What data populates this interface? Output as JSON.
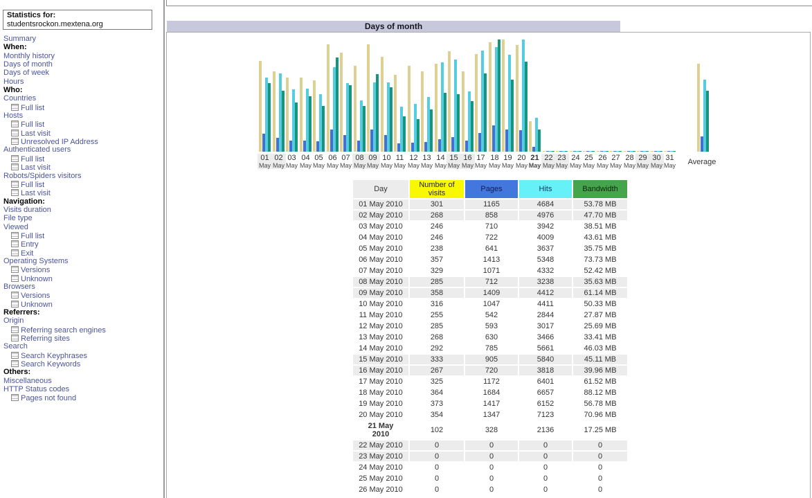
{
  "sidebar": {
    "stats_for_label": "Statistics for:",
    "site": "studentsrockon.mextena.org",
    "items": [
      {
        "type": "link",
        "label": "Summary"
      },
      {
        "type": "header",
        "label": "When:"
      },
      {
        "type": "link",
        "label": "Monthly history"
      },
      {
        "type": "link",
        "label": "Days of month"
      },
      {
        "type": "link",
        "label": "Days of week"
      },
      {
        "type": "link",
        "label": "Hours"
      },
      {
        "type": "header",
        "label": "Who:"
      },
      {
        "type": "link",
        "label": "Countries"
      },
      {
        "type": "sub",
        "label": "Full list"
      },
      {
        "type": "link",
        "label": "Hosts"
      },
      {
        "type": "sub",
        "label": "Full list"
      },
      {
        "type": "sub",
        "label": "Last visit"
      },
      {
        "type": "sub",
        "label": "Unresolved IP Address"
      },
      {
        "type": "link",
        "label": "Authenticated users"
      },
      {
        "type": "sub",
        "label": "Full list"
      },
      {
        "type": "sub",
        "label": "Last visit"
      },
      {
        "type": "link",
        "label": "Robots/Spiders visitors"
      },
      {
        "type": "sub",
        "label": "Full list"
      },
      {
        "type": "sub",
        "label": "Last visit"
      },
      {
        "type": "header",
        "label": "Navigation:"
      },
      {
        "type": "link",
        "label": "Visits duration"
      },
      {
        "type": "link",
        "label": "File type"
      },
      {
        "type": "link",
        "label": "Viewed"
      },
      {
        "type": "sub",
        "label": "Full list"
      },
      {
        "type": "sub",
        "label": "Entry"
      },
      {
        "type": "sub",
        "label": "Exit"
      },
      {
        "type": "link",
        "label": "Operating Systems"
      },
      {
        "type": "sub",
        "label": "Versions"
      },
      {
        "type": "sub",
        "label": "Unknown"
      },
      {
        "type": "link",
        "label": "Browsers"
      },
      {
        "type": "sub",
        "label": "Versions"
      },
      {
        "type": "sub",
        "label": "Unknown"
      },
      {
        "type": "header",
        "label": "Referrers:"
      },
      {
        "type": "link",
        "label": "Origin"
      },
      {
        "type": "sub",
        "label": "Referring search engines"
      },
      {
        "type": "sub",
        "label": "Referring sites"
      },
      {
        "type": "link",
        "label": "Search"
      },
      {
        "type": "sub",
        "label": "Search Keyphrases"
      },
      {
        "type": "sub",
        "label": "Search Keywords"
      },
      {
        "type": "header",
        "label": "Others:"
      },
      {
        "type": "link",
        "label": "Miscellaneous"
      },
      {
        "type": "link",
        "label": "HTTP Status codes"
      },
      {
        "type": "sub",
        "label": "Pages not found"
      }
    ]
  },
  "main": {
    "section_title": "Days of month",
    "average_label": "Average"
  },
  "colors": {
    "title_bar_bg": "#C8C8DC",
    "shaded_row": "#ECECEC",
    "link": "#4C549C",
    "visits_bar": "#DCD092",
    "pages_bar": "#4470CF",
    "hits_bar": "#55CCDF",
    "bandwidth_bar": "#16947E",
    "visits_header": "#F8F800",
    "pages_header": "#4477DD",
    "hits_header": "#66F0F8",
    "bandwidth_header": "#46A44C"
  },
  "chart_data": {
    "type": "bar",
    "title": "Days of month",
    "month_label": "May",
    "day_numbers": [
      "01",
      "02",
      "03",
      "04",
      "05",
      "06",
      "07",
      "08",
      "09",
      "10",
      "11",
      "12",
      "13",
      "14",
      "15",
      "16",
      "17",
      "18",
      "19",
      "20",
      "21",
      "22",
      "23",
      "24",
      "25",
      "26",
      "27",
      "28",
      "29",
      "30",
      "31"
    ],
    "weekend_days": [
      1,
      2,
      8,
      9,
      15,
      16,
      22,
      23,
      29,
      30
    ],
    "current_day": 21,
    "grid": false,
    "scaling_note": "AWStats style: visits scaled to max visits, pages and hits scaled to max hits, bandwidth scaled to max bandwidth; zero days drawn as 1px dashes",
    "series": [
      {
        "key": "visits",
        "name": "Number of visits",
        "scale": "visits",
        "color": "#DCD092",
        "values": [
          301,
          268,
          246,
          246,
          238,
          357,
          329,
          285,
          358,
          316,
          255,
          285,
          268,
          292,
          333,
          267,
          325,
          364,
          373,
          354,
          102,
          0,
          0,
          0,
          0,
          0,
          0,
          0,
          0,
          0,
          0
        ]
      },
      {
        "key": "pages",
        "name": "Pages",
        "scale": "hits",
        "color": "#4470CF",
        "values": [
          1165,
          858,
          710,
          722,
          641,
          1413,
          1071,
          712,
          1409,
          1047,
          542,
          593,
          630,
          785,
          905,
          720,
          1172,
          1684,
          1417,
          1347,
          328,
          0,
          0,
          0,
          0,
          0,
          0,
          0,
          0,
          0,
          0
        ]
      },
      {
        "key": "hits",
        "name": "Hits",
        "scale": "hits",
        "color": "#55CCDF",
        "values": [
          4684,
          4976,
          3942,
          4009,
          3637,
          5348,
          4332,
          3238,
          4412,
          4411,
          2844,
          3017,
          3466,
          5661,
          5840,
          3818,
          6401,
          6657,
          6152,
          7123,
          2136,
          0,
          0,
          0,
          0,
          0,
          0,
          0,
          0,
          0,
          0
        ]
      },
      {
        "key": "bandwidth",
        "name": "Bandwidth (MB)",
        "scale": "bandwidth",
        "color": "#16947E",
        "values": [
          53.78,
          47.7,
          38.51,
          43.61,
          35.75,
          73.73,
          52.42,
          35.63,
          61.14,
          50.33,
          27.87,
          25.69,
          33.41,
          46.03,
          45.11,
          39.96,
          61.52,
          88.12,
          56.78,
          70.96,
          17.25,
          0,
          0,
          0,
          0,
          0,
          0,
          0,
          0,
          0,
          0
        ]
      }
    ],
    "average": {
      "visits": 293.4,
      "pages": 946.2,
      "hits": 4576.4,
      "bandwidth": 47.87
    }
  },
  "table": {
    "headers": [
      "Day",
      "Number of visits",
      "Pages",
      "Hits",
      "Bandwidth"
    ],
    "rows": [
      {
        "day": "01 May 2010",
        "visits": "301",
        "pages": "1165",
        "hits": "4684",
        "bandwidth": "53.78 MB",
        "shaded": true,
        "bold": false
      },
      {
        "day": "02 May 2010",
        "visits": "268",
        "pages": "858",
        "hits": "4976",
        "bandwidth": "47.70 MB",
        "shaded": true,
        "bold": false
      },
      {
        "day": "03 May 2010",
        "visits": "246",
        "pages": "710",
        "hits": "3942",
        "bandwidth": "38.51 MB",
        "shaded": false,
        "bold": false
      },
      {
        "day": "04 May 2010",
        "visits": "246",
        "pages": "722",
        "hits": "4009",
        "bandwidth": "43.61 MB",
        "shaded": false,
        "bold": false
      },
      {
        "day": "05 May 2010",
        "visits": "238",
        "pages": "641",
        "hits": "3637",
        "bandwidth": "35.75 MB",
        "shaded": false,
        "bold": false
      },
      {
        "day": "06 May 2010",
        "visits": "357",
        "pages": "1413",
        "hits": "5348",
        "bandwidth": "73.73 MB",
        "shaded": false,
        "bold": false
      },
      {
        "day": "07 May 2010",
        "visits": "329",
        "pages": "1071",
        "hits": "4332",
        "bandwidth": "52.42 MB",
        "shaded": false,
        "bold": false
      },
      {
        "day": "08 May 2010",
        "visits": "285",
        "pages": "712",
        "hits": "3238",
        "bandwidth": "35.63 MB",
        "shaded": true,
        "bold": false
      },
      {
        "day": "09 May 2010",
        "visits": "358",
        "pages": "1409",
        "hits": "4412",
        "bandwidth": "61.14 MB",
        "shaded": true,
        "bold": false
      },
      {
        "day": "10 May 2010",
        "visits": "316",
        "pages": "1047",
        "hits": "4411",
        "bandwidth": "50.33 MB",
        "shaded": false,
        "bold": false
      },
      {
        "day": "11 May 2010",
        "visits": "255",
        "pages": "542",
        "hits": "2844",
        "bandwidth": "27.87 MB",
        "shaded": false,
        "bold": false
      },
      {
        "day": "12 May 2010",
        "visits": "285",
        "pages": "593",
        "hits": "3017",
        "bandwidth": "25.69 MB",
        "shaded": false,
        "bold": false
      },
      {
        "day": "13 May 2010",
        "visits": "268",
        "pages": "630",
        "hits": "3466",
        "bandwidth": "33.41 MB",
        "shaded": false,
        "bold": false
      },
      {
        "day": "14 May 2010",
        "visits": "292",
        "pages": "785",
        "hits": "5661",
        "bandwidth": "46.03 MB",
        "shaded": false,
        "bold": false
      },
      {
        "day": "15 May 2010",
        "visits": "333",
        "pages": "905",
        "hits": "5840",
        "bandwidth": "45.11 MB",
        "shaded": true,
        "bold": false
      },
      {
        "day": "16 May 2010",
        "visits": "267",
        "pages": "720",
        "hits": "3818",
        "bandwidth": "39.96 MB",
        "shaded": true,
        "bold": false
      },
      {
        "day": "17 May 2010",
        "visits": "325",
        "pages": "1172",
        "hits": "6401",
        "bandwidth": "61.52 MB",
        "shaded": false,
        "bold": false
      },
      {
        "day": "18 May 2010",
        "visits": "364",
        "pages": "1684",
        "hits": "6657",
        "bandwidth": "88.12 MB",
        "shaded": false,
        "bold": false
      },
      {
        "day": "19 May 2010",
        "visits": "373",
        "pages": "1417",
        "hits": "6152",
        "bandwidth": "56.78 MB",
        "shaded": false,
        "bold": false
      },
      {
        "day": "20 May 2010",
        "visits": "354",
        "pages": "1347",
        "hits": "7123",
        "bandwidth": "70.96 MB",
        "shaded": false,
        "bold": false
      },
      {
        "day": "21 May 2010",
        "visits": "102",
        "pages": "328",
        "hits": "2136",
        "bandwidth": "17.25 MB",
        "shaded": false,
        "bold": true
      },
      {
        "day": "22 May 2010",
        "visits": "0",
        "pages": "0",
        "hits": "0",
        "bandwidth": "0",
        "shaded": true,
        "bold": false
      },
      {
        "day": "23 May 2010",
        "visits": "0",
        "pages": "0",
        "hits": "0",
        "bandwidth": "0",
        "shaded": true,
        "bold": false
      },
      {
        "day": "24 May 2010",
        "visits": "0",
        "pages": "0",
        "hits": "0",
        "bandwidth": "0",
        "shaded": false,
        "bold": false
      },
      {
        "day": "25 May 2010",
        "visits": "0",
        "pages": "0",
        "hits": "0",
        "bandwidth": "0",
        "shaded": false,
        "bold": false
      },
      {
        "day": "26 May 2010",
        "visits": "0",
        "pages": "0",
        "hits": "0",
        "bandwidth": "0",
        "shaded": false,
        "bold": false
      }
    ]
  }
}
